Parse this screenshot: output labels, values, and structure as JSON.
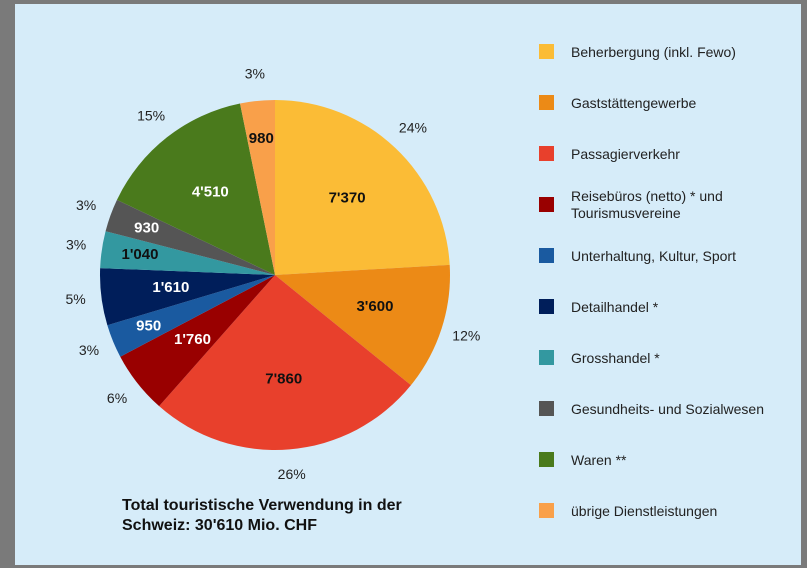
{
  "chart_data": {
    "type": "pie",
    "title": "Total touristische Verwendung in der Schweiz: 30'610 Mio. CHF",
    "categories": [
      "Beherbergung (inkl. Fewo)",
      "Gaststättengewerbe",
      "Passagierverkehr",
      "Reisebüros (netto) * und Tourismusvereine",
      "Unterhaltung, Kultur, Sport",
      "Detailhandel *",
      "Grosshandel *",
      "Gesundheits- und Sozialwesen",
      "Waren **",
      "übrige Dienstleistungen"
    ],
    "values": [
      7370,
      3600,
      7860,
      1760,
      950,
      1610,
      1040,
      930,
      4510,
      980
    ],
    "value_labels": [
      "7'370",
      "3'600",
      "7'860",
      "1'760",
      "950",
      "1'610",
      "1'040",
      "930",
      "4'510",
      "980"
    ],
    "percent_labels": [
      "24%",
      "12%",
      "26%",
      "6%",
      "3%",
      "5%",
      "3%",
      "3%",
      "15%",
      "3%"
    ],
    "colors": [
      "#fbbc36",
      "#ec8a16",
      "#e8402c",
      "#990000",
      "#1a5aa0",
      "#001e5a",
      "#3398a0",
      "#555555",
      "#4a7a1c",
      "#f9a04a"
    ],
    "legend": "right"
  }
}
